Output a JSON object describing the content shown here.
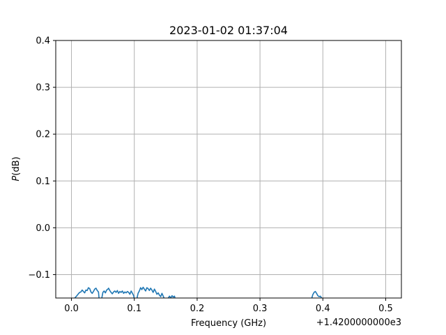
{
  "chart_data": {
    "type": "line",
    "title": "2023-01-02 01:37:04",
    "xlabel": "Frequency (GHz)",
    "ylabel_italic": "P",
    "ylabel_rest": "(dB)",
    "x_offset_label": "+1.4200000000e3",
    "xlim": [
      -0.025,
      0.525
    ],
    "ylim": [
      -0.15,
      0.4
    ],
    "xticks": [
      0.0,
      0.1,
      0.2,
      0.3,
      0.4,
      0.5
    ],
    "xtick_labels": [
      "0.0",
      "0.1",
      "0.2",
      "0.3",
      "0.4",
      "0.5"
    ],
    "yticks": [
      -0.1,
      0.0,
      0.1,
      0.2,
      0.3,
      0.4
    ],
    "ytick_labels": [
      "−0.1",
      "0.0",
      "0.1",
      "0.2",
      "0.3",
      "0.4"
    ],
    "grid": true,
    "line_color": "#1f77b4",
    "series": [
      {
        "segments": [
          [
            [
              0.004,
              -0.152
            ],
            [
              0.008,
              -0.146
            ],
            [
              0.011,
              -0.141
            ],
            [
              0.013,
              -0.138
            ],
            [
              0.015,
              -0.137
            ],
            [
              0.017,
              -0.133
            ],
            [
              0.019,
              -0.136
            ],
            [
              0.021,
              -0.139
            ],
            [
              0.023,
              -0.133
            ],
            [
              0.025,
              -0.134
            ],
            [
              0.027,
              -0.128
            ],
            [
              0.029,
              -0.13
            ],
            [
              0.031,
              -0.137
            ],
            [
              0.033,
              -0.14
            ],
            [
              0.035,
              -0.136
            ],
            [
              0.037,
              -0.131
            ],
            [
              0.039,
              -0.129
            ],
            [
              0.041,
              -0.134
            ],
            [
              0.043,
              -0.137
            ],
            [
              0.044,
              -0.152
            ]
          ],
          [
            [
              0.048,
              -0.152
            ],
            [
              0.05,
              -0.138
            ],
            [
              0.052,
              -0.135
            ],
            [
              0.054,
              -0.139
            ],
            [
              0.056,
              -0.133
            ],
            [
              0.058,
              -0.131
            ],
            [
              0.059,
              -0.129
            ],
            [
              0.061,
              -0.134
            ],
            [
              0.063,
              -0.138
            ],
            [
              0.065,
              -0.141
            ],
            [
              0.067,
              -0.137
            ],
            [
              0.069,
              -0.135
            ],
            [
              0.071,
              -0.138
            ],
            [
              0.073,
              -0.134
            ],
            [
              0.075,
              -0.14
            ],
            [
              0.077,
              -0.136
            ],
            [
              0.079,
              -0.138
            ],
            [
              0.081,
              -0.135
            ],
            [
              0.083,
              -0.14
            ],
            [
              0.085,
              -0.137
            ],
            [
              0.087,
              -0.139
            ],
            [
              0.089,
              -0.136
            ],
            [
              0.091,
              -0.138
            ],
            [
              0.093,
              -0.142
            ],
            [
              0.095,
              -0.135
            ],
            [
              0.097,
              -0.14
            ],
            [
              0.099,
              -0.145
            ],
            [
              0.1,
              -0.152
            ]
          ],
          [
            [
              0.104,
              -0.152
            ],
            [
              0.106,
              -0.14
            ],
            [
              0.108,
              -0.135
            ],
            [
              0.11,
              -0.128
            ],
            [
              0.112,
              -0.132
            ],
            [
              0.114,
              -0.127
            ],
            [
              0.116,
              -0.131
            ],
            [
              0.118,
              -0.135
            ],
            [
              0.12,
              -0.128
            ],
            [
              0.122,
              -0.13
            ],
            [
              0.124,
              -0.134
            ],
            [
              0.126,
              -0.129
            ],
            [
              0.128,
              -0.133
            ],
            [
              0.13,
              -0.138
            ],
            [
              0.132,
              -0.131
            ],
            [
              0.134,
              -0.136
            ],
            [
              0.136,
              -0.142
            ],
            [
              0.138,
              -0.139
            ],
            [
              0.14,
              -0.144
            ],
            [
              0.142,
              -0.147
            ],
            [
              0.144,
              -0.14
            ],
            [
              0.146,
              -0.146
            ],
            [
              0.148,
              -0.152
            ]
          ],
          [
            [
              0.153,
              -0.152
            ],
            [
              0.156,
              -0.146
            ],
            [
              0.158,
              -0.15
            ],
            [
              0.16,
              -0.145
            ],
            [
              0.162,
              -0.148
            ],
            [
              0.164,
              -0.146
            ],
            [
              0.165,
              -0.152
            ]
          ],
          [
            [
              0.382,
              -0.152
            ],
            [
              0.384,
              -0.143
            ],
            [
              0.386,
              -0.138
            ],
            [
              0.388,
              -0.136
            ],
            [
              0.39,
              -0.14
            ],
            [
              0.392,
              -0.145
            ],
            [
              0.394,
              -0.147
            ],
            [
              0.396,
              -0.146
            ],
            [
              0.398,
              -0.15
            ],
            [
              0.401,
              -0.152
            ]
          ]
        ]
      }
    ]
  }
}
